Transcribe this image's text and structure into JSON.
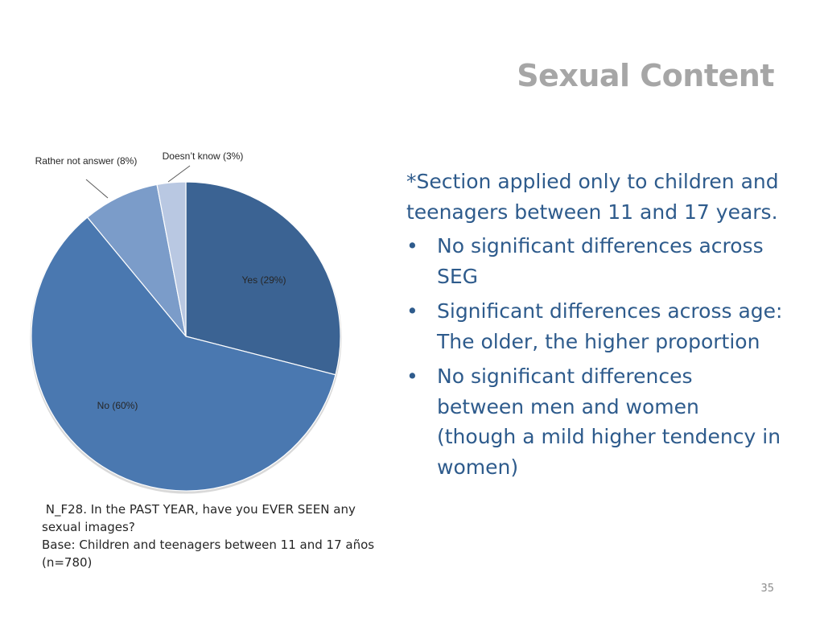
{
  "slide": {
    "title": "Sexual Content",
    "page_number": "35"
  },
  "question": {
    "lines": [
      " N_F28. In the PAST YEAR, have you EVER SEEN any",
      "sexual images?",
      "Base: Children and teenagers between 11 and 17 años",
      "(n=780)"
    ]
  },
  "body": {
    "intro": "*Section applied only to children and teenagers between 11 and 17 years.",
    "bullets": [
      "No significant differences across SEG",
      "Significant differences across age: The older, the higher proportion",
      "No significant differences between men and women (though a mild higher tendency in women)"
    ]
  },
  "chart_data": {
    "type": "pie",
    "slices": [
      {
        "label": "Yes (29%)",
        "value": 29,
        "color": "#3b6393"
      },
      {
        "label": "No (60%)",
        "value": 60,
        "color": "#4a78b0"
      },
      {
        "label": "Rather not answer (8%)",
        "value": 8,
        "color": "#7b9cc9"
      },
      {
        "label": "Doesn’t know (3%)",
        "value": 3,
        "color": "#b9c8e2"
      }
    ],
    "start_angle_deg": 0,
    "direction": "clockwise",
    "legend": "none"
  }
}
